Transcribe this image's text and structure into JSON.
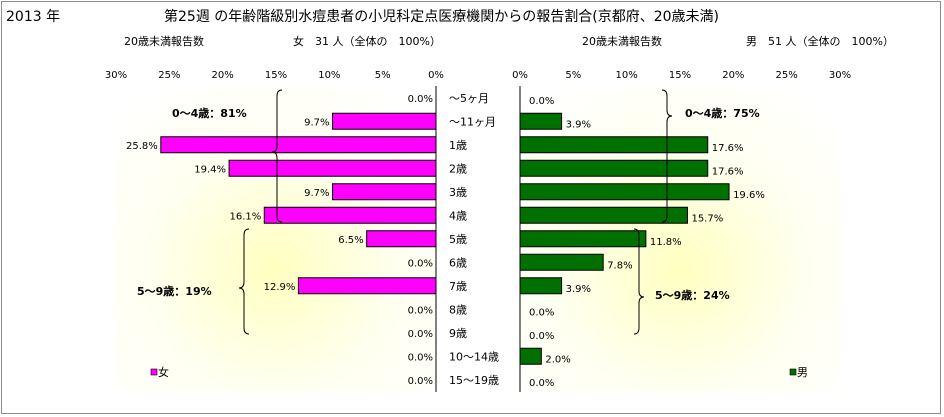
{
  "header": {
    "year": "2013 年",
    "title": "第25週 の年齢階級別水痘患者の小児科定点医療機関からの報告割合(京都府、20歳未満)",
    "left_subtitle_label": "20歳未満報告数",
    "left_subtitle_count": "女　31 人（全体の　100%）",
    "right_subtitle_label": "20歳未満報告数",
    "right_subtitle_count": "男　51 人（全体の　100%）"
  },
  "annotations": {
    "left_group1": "0～4歳：81%",
    "left_group2": "5～9歳：19%",
    "right_group1": "0～4歳：75%",
    "right_group2": "5～9歳：24%"
  },
  "chart_data": {
    "type": "bar",
    "orientation": "horizontal",
    "categories": [
      "～5ヶ月",
      "～11ヶ月",
      "1歳",
      "2歳",
      "3歳",
      "4歳",
      "5歳",
      "6歳",
      "7歳",
      "8歳",
      "9歳",
      "10～14歳",
      "15～19歳"
    ],
    "axis_ticks": [
      "30%",
      "25%",
      "20%",
      "15%",
      "10%",
      "5%",
      "0%"
    ],
    "right_axis_ticks": [
      "0%",
      "5%",
      "10%",
      "15%",
      "20%",
      "25%",
      "30%"
    ],
    "xlim": [
      0,
      30
    ],
    "series": [
      {
        "name": "女",
        "color": "#ff00ff",
        "values": [
          0.0,
          9.7,
          25.8,
          19.4,
          9.7,
          16.1,
          6.5,
          0.0,
          12.9,
          0.0,
          0.0,
          0.0,
          0.0
        ],
        "labels": [
          "0.0%",
          "9.7%",
          "25.8%",
          "19.4%",
          "9.7%",
          "16.1%",
          "6.5%",
          "0.0%",
          "12.9%",
          "0.0%",
          "0.0%",
          "0.0%",
          "0.0%"
        ]
      },
      {
        "name": "男",
        "color": "#007000",
        "values": [
          0.0,
          3.9,
          17.6,
          17.6,
          19.6,
          15.7,
          11.8,
          7.8,
          3.9,
          0.0,
          0.0,
          2.0,
          0.0
        ],
        "labels": [
          "0.0%",
          "3.9%",
          "17.6%",
          "17.6%",
          "19.6%",
          "15.7%",
          "11.8%",
          "7.8%",
          "3.9%",
          "0.0%",
          "0.0%",
          "2.0%",
          "0.0%"
        ]
      }
    ],
    "legend_left": "女",
    "legend_right": "男",
    "legend_placement": "bottom"
  }
}
